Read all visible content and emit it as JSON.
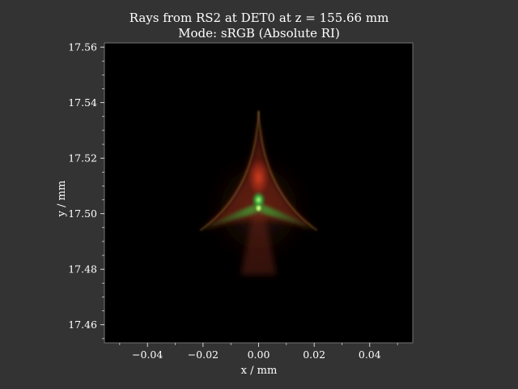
{
  "chart_data": {
    "type": "heatmap",
    "title": "Rays from RS2 at DET0 at z = 155.66 mm",
    "subtitle": "Mode: sRGB (Absolute RI)",
    "xlabel": "x / mm",
    "ylabel": "y / mm",
    "xlim": [
      -0.0555,
      0.0555
    ],
    "ylim": [
      17.4535,
      17.5615
    ],
    "x_ticks": [
      -0.04,
      -0.02,
      0.0,
      0.02,
      0.04
    ],
    "x_tick_labels": [
      "−0.04",
      "−0.02",
      "0.00",
      "0.02",
      "0.04"
    ],
    "y_ticks": [
      17.46,
      17.48,
      17.5,
      17.52,
      17.54,
      17.56
    ],
    "y_tick_labels": [
      "17.46",
      "17.48",
      "17.50",
      "17.52",
      "17.54",
      "17.56"
    ],
    "grid": false,
    "background_color": "#333333",
    "plot_background_color": "#000000",
    "spot": {
      "shape": "three-cusp caustic (deltoid-like) ray spot",
      "apex_top_y": 17.537,
      "left_cusp": [
        -0.021,
        17.494
      ],
      "right_cusp": [
        0.021,
        17.494
      ],
      "bright_center": [
        0.0,
        17.502
      ],
      "green_core": [
        0.0,
        17.505
      ],
      "lower_fade_y": 17.478,
      "colors": {
        "center": "#c0ff7a",
        "core": "#33cc4d",
        "upper": "#d6401c",
        "wings": "#3b9a33"
      }
    }
  }
}
